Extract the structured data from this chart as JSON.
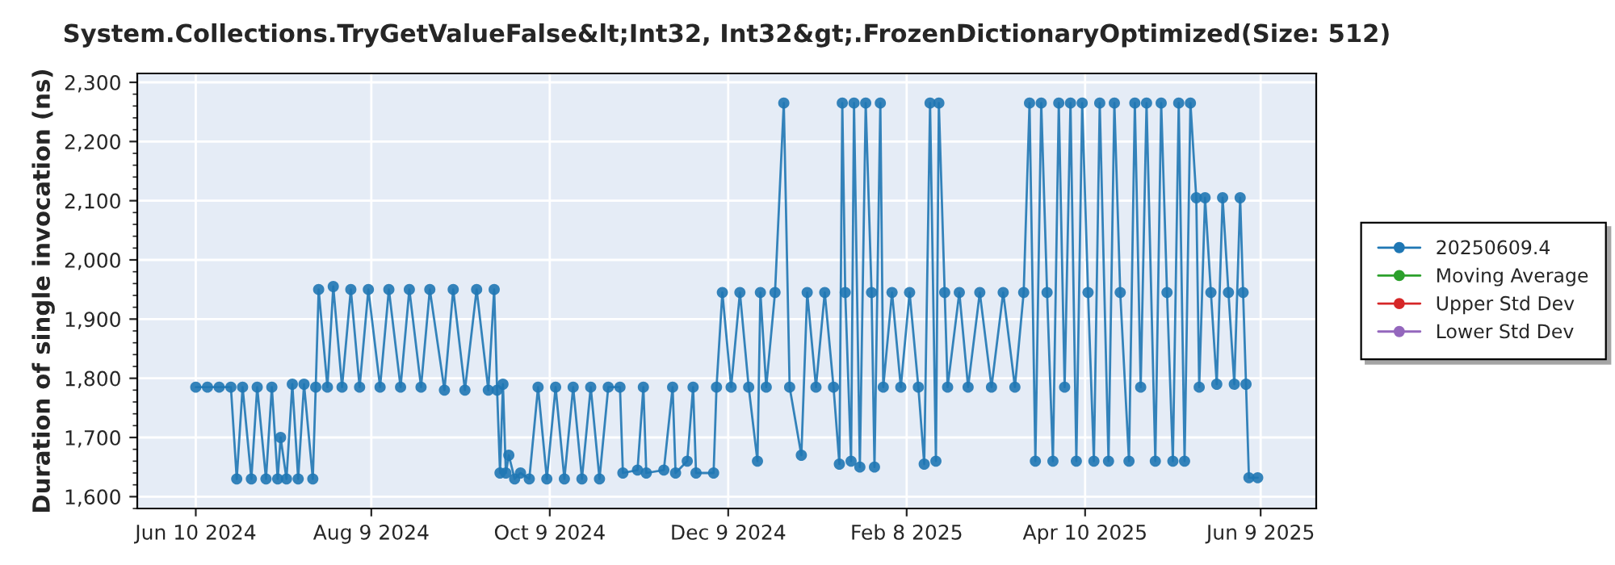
{
  "chart_data": {
    "type": "line",
    "title": "System.Collections.TryGetValueFalse&lt;Int32, Int32&gt;.FrozenDictionaryOptimized(Size: 512)",
    "ylabel": "Duration of single invocation (ns)",
    "xlim": [
      "2024-05-21",
      "2025-06-28"
    ],
    "xticks": [
      {
        "value": "2024-06-10",
        "label": "Jun 10 2024"
      },
      {
        "value": "2024-08-09",
        "label": "Aug 9 2024"
      },
      {
        "value": "2024-10-09",
        "label": "Oct 9 2024"
      },
      {
        "value": "2024-12-09",
        "label": "Dec 9 2024"
      },
      {
        "value": "2025-02-08",
        "label": "Feb 8 2025"
      },
      {
        "value": "2025-04-10",
        "label": "Apr 10 2025"
      },
      {
        "value": "2025-06-09",
        "label": "Jun 9 2025"
      }
    ],
    "ylim": [
      1580,
      2315
    ],
    "yticks": [
      {
        "value": 1600,
        "label": "1,600"
      },
      {
        "value": 1700,
        "label": "1,700"
      },
      {
        "value": 1800,
        "label": "1,800"
      },
      {
        "value": 1900,
        "label": "1,900"
      },
      {
        "value": 2000,
        "label": "2,000"
      },
      {
        "value": 2100,
        "label": "2,100"
      },
      {
        "value": 2200,
        "label": "2,200"
      },
      {
        "value": 2300,
        "label": "2,300"
      }
    ],
    "grid": true,
    "legend": "right",
    "marker": "circle",
    "line_style": "solid",
    "series": [
      {
        "name": "20250609.4",
        "color": "#1f77b4",
        "x": [
          "2024-06-10",
          "2024-06-14",
          "2024-06-18",
          "2024-06-22",
          "2024-06-24",
          "2024-06-26",
          "2024-06-29",
          "2024-07-01",
          "2024-07-04",
          "2024-07-06",
          "2024-07-08",
          "2024-07-09",
          "2024-07-11",
          "2024-07-13",
          "2024-07-15",
          "2024-07-17",
          "2024-07-20",
          "2024-07-21",
          "2024-07-22",
          "2024-07-25",
          "2024-07-27",
          "2024-07-30",
          "2024-08-02",
          "2024-08-05",
          "2024-08-08",
          "2024-08-12",
          "2024-08-15",
          "2024-08-19",
          "2024-08-22",
          "2024-08-26",
          "2024-08-29",
          "2024-09-03",
          "2024-09-06",
          "2024-09-10",
          "2024-09-14",
          "2024-09-18",
          "2024-09-20",
          "2024-09-21",
          "2024-09-22",
          "2024-09-23",
          "2024-09-24",
          "2024-09-25",
          "2024-09-27",
          "2024-09-29",
          "2024-10-02",
          "2024-10-05",
          "2024-10-08",
          "2024-10-11",
          "2024-10-14",
          "2024-10-17",
          "2024-10-20",
          "2024-10-23",
          "2024-10-26",
          "2024-10-29",
          "2024-11-02",
          "2024-11-03",
          "2024-11-08",
          "2024-11-10",
          "2024-11-11",
          "2024-11-17",
          "2024-11-20",
          "2024-11-21",
          "2024-11-25",
          "2024-11-27",
          "2024-11-28",
          "2024-12-04",
          "2024-12-05",
          "2024-12-07",
          "2024-12-10",
          "2024-12-13",
          "2024-12-16",
          "2024-12-19",
          "2024-12-20",
          "2024-12-22",
          "2024-12-25",
          "2024-12-28",
          "2024-12-30",
          "2025-01-03",
          "2025-01-05",
          "2025-01-08",
          "2025-01-11",
          "2025-01-14",
          "2025-01-16",
          "2025-01-17",
          "2025-01-18",
          "2025-01-20",
          "2025-01-21",
          "2025-01-23",
          "2025-01-25",
          "2025-01-27",
          "2025-01-28",
          "2025-01-30",
          "2025-01-31",
          "2025-02-03",
          "2025-02-06",
          "2025-02-09",
          "2025-02-12",
          "2025-02-14",
          "2025-02-16",
          "2025-02-18",
          "2025-02-19",
          "2025-02-21",
          "2025-02-22",
          "2025-02-26",
          "2025-03-01",
          "2025-03-05",
          "2025-03-09",
          "2025-03-13",
          "2025-03-17",
          "2025-03-20",
          "2025-03-22",
          "2025-03-24",
          "2025-03-26",
          "2025-03-28",
          "2025-03-30",
          "2025-04-01",
          "2025-04-03",
          "2025-04-05",
          "2025-04-07",
          "2025-04-09",
          "2025-04-11",
          "2025-04-13",
          "2025-04-15",
          "2025-04-18",
          "2025-04-20",
          "2025-04-22",
          "2025-04-25",
          "2025-04-27",
          "2025-04-29",
          "2025-05-01",
          "2025-05-04",
          "2025-05-06",
          "2025-05-08",
          "2025-05-10",
          "2025-05-12",
          "2025-05-14",
          "2025-05-16",
          "2025-05-18",
          "2025-05-19",
          "2025-05-21",
          "2025-05-23",
          "2025-05-25",
          "2025-05-27",
          "2025-05-29",
          "2025-05-31",
          "2025-06-02",
          "2025-06-03",
          "2025-06-04",
          "2025-06-05",
          "2025-06-08"
        ],
        "values": [
          1785,
          1785,
          1785,
          1785,
          1630,
          1785,
          1630,
          1785,
          1630,
          1785,
          1630,
          1700,
          1630,
          1790,
          1630,
          1790,
          1630,
          1785,
          1950,
          1785,
          1955,
          1785,
          1950,
          1785,
          1950,
          1785,
          1950,
          1785,
          1950,
          1785,
          1950,
          1780,
          1950,
          1780,
          1950,
          1780,
          1950,
          1780,
          1640,
          1790,
          1640,
          1670,
          1630,
          1640,
          1630,
          1785,
          1630,
          1785,
          1630,
          1785,
          1630,
          1785,
          1630,
          1785,
          1785,
          1640,
          1645,
          1785,
          1640,
          1645,
          1785,
          1640,
          1660,
          1785,
          1640,
          1640,
          1785,
          1945,
          1785,
          1945,
          1785,
          1660,
          1945,
          1785,
          1945,
          2265,
          1785,
          1670,
          1945,
          1785,
          1945,
          1785,
          1655,
          2265,
          1945,
          1660,
          2265,
          1650,
          2265,
          1945,
          1650,
          2265,
          1785,
          1945,
          1785,
          1945,
          1785,
          1655,
          2265,
          1660,
          2265,
          1945,
          1785,
          1945,
          1785,
          1945,
          1785,
          1945,
          1785,
          1945,
          2265,
          1660,
          2265,
          1945,
          1660,
          2265,
          1785,
          2265,
          1660,
          2265,
          1945,
          1660,
          2265,
          1660,
          2265,
          1945,
          1660,
          2265,
          1785,
          2265,
          1660,
          2265,
          1945,
          1660,
          2265,
          1660,
          2265,
          2105,
          1785,
          2105,
          1945,
          1790,
          2105,
          1945,
          1790,
          2105,
          1945,
          1790,
          1632,
          1632
        ]
      },
      {
        "name": "Moving Average",
        "color": "#2ca02c"
      },
      {
        "name": "Upper Std Dev",
        "color": "#d62728"
      },
      {
        "name": "Lower Std Dev",
        "color": "#9467bd"
      }
    ]
  }
}
